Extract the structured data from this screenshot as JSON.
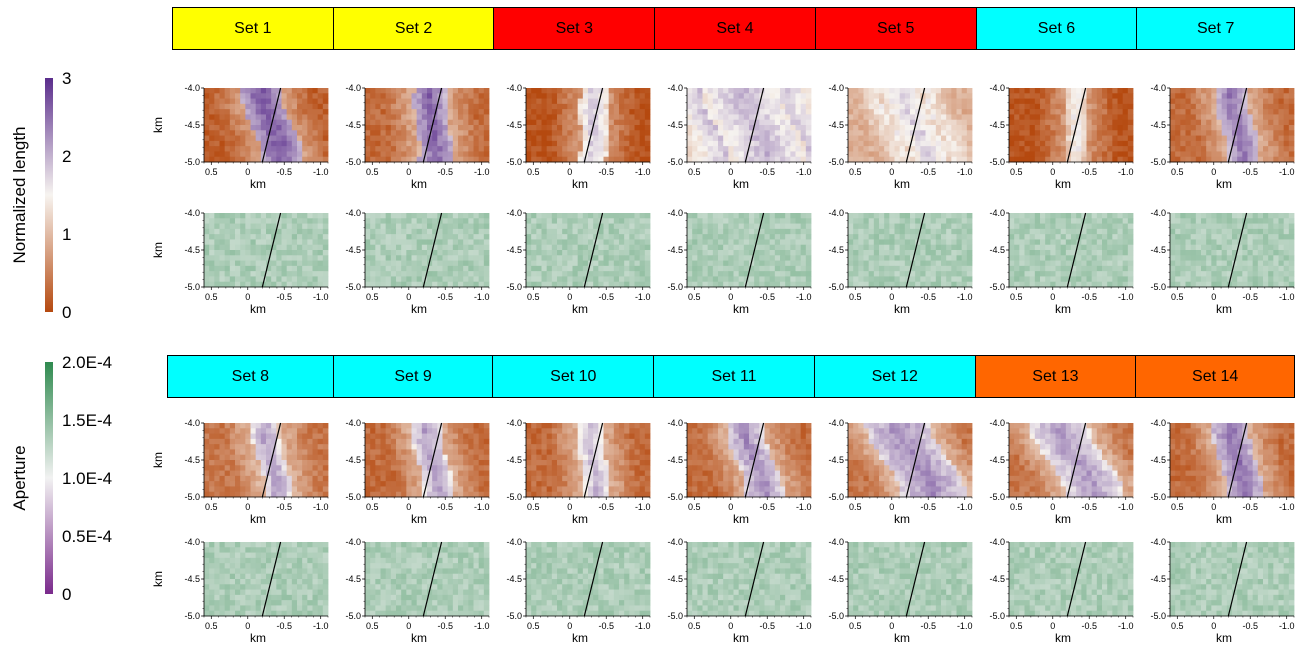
{
  "chart_data": {
    "type": "heatmap",
    "description_free": true,
    "panels_per_set": [
      "Normalized length",
      "Aperture"
    ],
    "sets": [
      {
        "name": "Set 1",
        "color": "#ffff00"
      },
      {
        "name": "Set 2",
        "color": "#ffff00"
      },
      {
        "name": "Set 3",
        "color": "#ff0000"
      },
      {
        "name": "Set 4",
        "color": "#ff0000"
      },
      {
        "name": "Set 5",
        "color": "#ff0000"
      },
      {
        "name": "Set 6",
        "color": "#00ffff"
      },
      {
        "name": "Set 7",
        "color": "#00ffff"
      },
      {
        "name": "Set 8",
        "color": "#00ffff"
      },
      {
        "name": "Set 9",
        "color": "#00ffff"
      },
      {
        "name": "Set 10",
        "color": "#00ffff"
      },
      {
        "name": "Set 11",
        "color": "#00ffff"
      },
      {
        "name": "Set 12",
        "color": "#00ffff"
      },
      {
        "name": "Set 13",
        "color": "#ff6600"
      },
      {
        "name": "Set 14",
        "color": "#ff6600"
      }
    ],
    "xlabel": "km",
    "ylabel": "km",
    "xlim": [
      0.6,
      -1.1
    ],
    "ylim": [
      -5.0,
      -4.0
    ],
    "xticks": [
      "0.5",
      "0",
      "-0.5",
      "-1.0"
    ],
    "yticks": [
      "-4.0",
      "-4.5",
      "-5.0"
    ],
    "fault_trace": [
      [
        -0.2,
        -5.0
      ],
      [
        -0.45,
        -4.0
      ]
    ],
    "colorbars": [
      {
        "label": "Normalized length",
        "ticks": [
          "0",
          "1",
          "2",
          "3"
        ],
        "range": [
          0,
          3
        ],
        "colors": [
          "#b5490f",
          "#f7f4f0",
          "#5a2d8c"
        ]
      },
      {
        "label": "Aperture",
        "ticks": [
          "0",
          "0.5E-4",
          "1.0E-4",
          "1.5E-4",
          "2.0E-4"
        ],
        "range": [
          0,
          0.0002
        ],
        "colors": [
          "#7a2a8c",
          "#f2f2f2",
          "#2f8a4f"
        ]
      }
    ]
  }
}
